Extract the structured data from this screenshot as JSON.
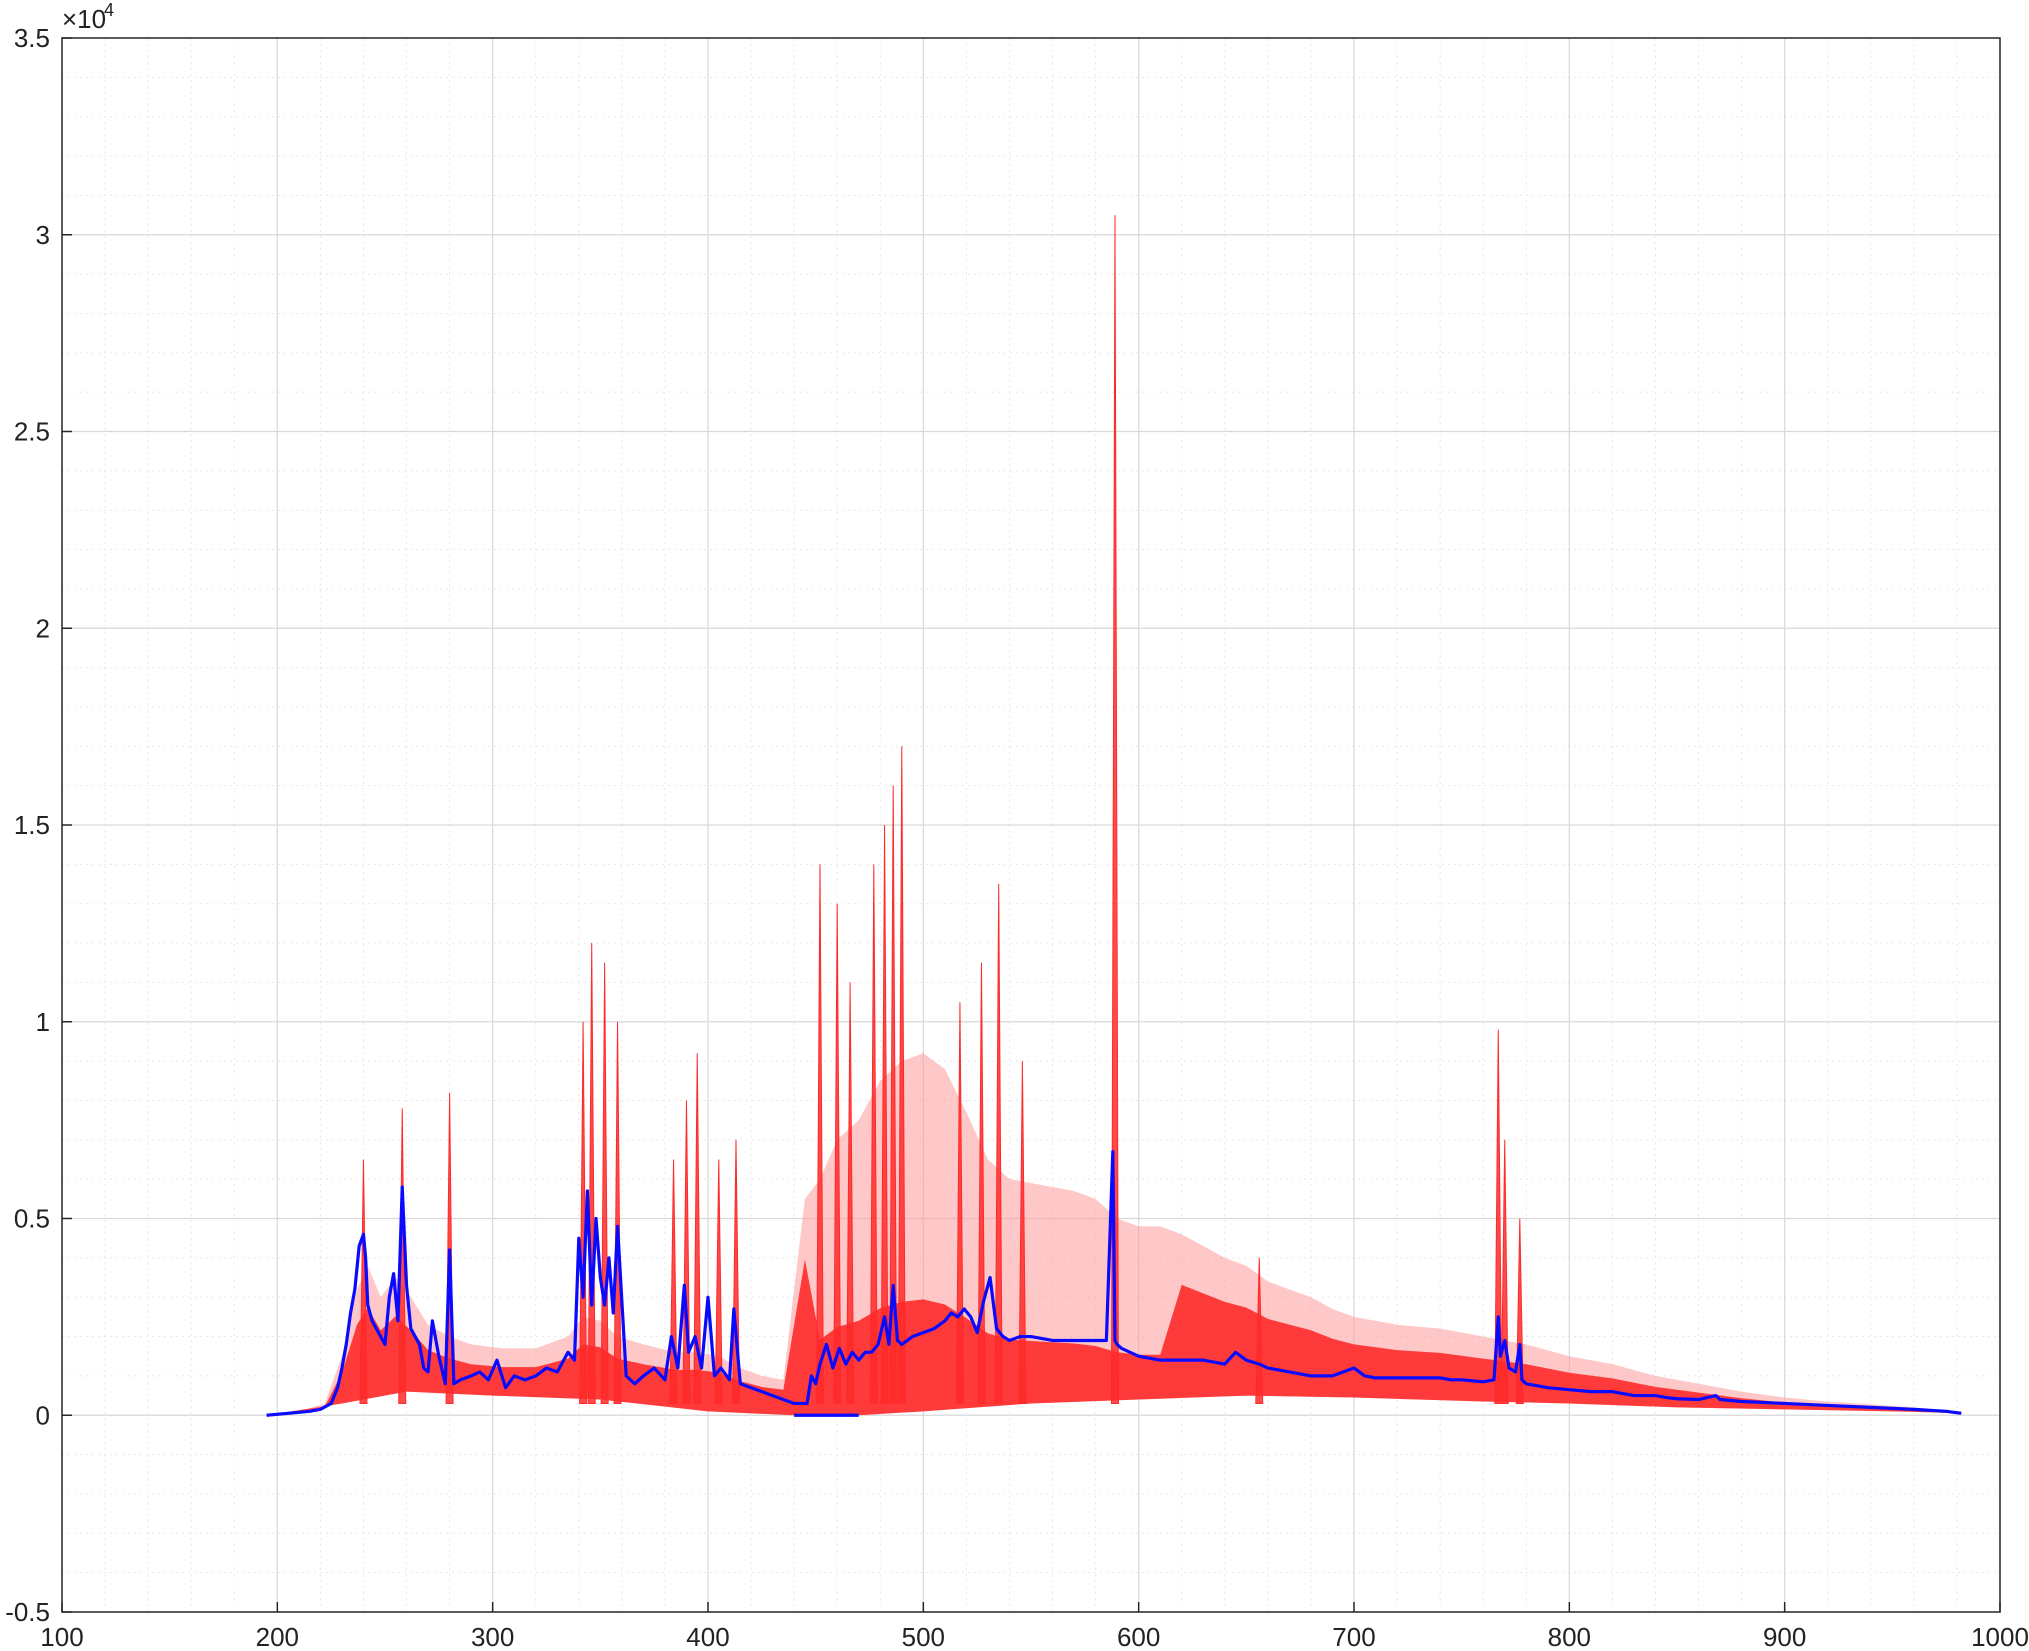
{
  "chart_data": {
    "type": "line",
    "title": "",
    "xlabel": "",
    "ylabel": "",
    "xlim": [
      100,
      1000
    ],
    "ylim": [
      -5000,
      35000
    ],
    "y_exponent_label": "×10",
    "y_exponent_power": "4",
    "x_ticks": [
      100,
      200,
      300,
      400,
      500,
      600,
      700,
      800,
      900,
      1000
    ],
    "x_tick_labels": [
      "100",
      "200",
      "300",
      "400",
      "500",
      "600",
      "700",
      "800",
      "900",
      "1000"
    ],
    "y_ticks": [
      -5000,
      0,
      5000,
      10000,
      15000,
      20000,
      25000,
      30000,
      35000
    ],
    "y_tick_labels": [
      "-0.5",
      "0",
      "0.5",
      "1",
      "1.5",
      "2",
      "2.5",
      "3",
      "3.5"
    ],
    "grid": "major and minor",
    "colors": {
      "band": "#ff2a2a",
      "band_light": "#ff9a9a",
      "mean": "#0a0aff",
      "grid": "#d9d9d9"
    },
    "series": [
      {
        "role": "spectra envelope (upper)",
        "color": "#ff2a2a",
        "x": [
          195,
          210,
          222,
          230,
          237,
          242,
          248,
          255,
          262,
          270,
          280,
          290,
          305,
          320,
          335,
          342,
          350,
          358,
          370,
          385,
          395,
          405,
          415,
          425,
          435,
          445,
          452,
          460,
          470,
          480,
          490,
          500,
          510,
          520,
          530,
          540,
          550,
          560,
          570,
          580,
          590,
          600,
          610,
          620,
          630,
          640,
          650,
          660,
          670,
          680,
          690,
          700,
          720,
          740,
          760,
          780,
          800,
          820,
          840,
          860,
          880,
          900,
          920,
          940,
          960,
          982
        ],
        "y": [
          0,
          100,
          300,
          1500,
          3200,
          3800,
          3000,
          3500,
          3000,
          2300,
          2000,
          1800,
          1700,
          1700,
          2000,
          2500,
          2400,
          2000,
          1800,
          1600,
          1600,
          1500,
          1200,
          1000,
          900,
          5500,
          6000,
          7000,
          7500,
          8500,
          9000,
          9200,
          8800,
          7700,
          6500,
          6000,
          5900,
          5800,
          5700,
          5500,
          5000,
          4800,
          4800,
          4600,
          4300,
          4000,
          3800,
          3400,
          3200,
          3000,
          2700,
          2500,
          2300,
          2200,
          2000,
          1800,
          1500,
          1300,
          1000,
          800,
          600,
          450,
          350,
          280,
          200,
          100
        ]
      },
      {
        "role": "spectra envelope (lower)",
        "color": "#ff2a2a",
        "x": [
          195,
          230,
          260,
          300,
          350,
          400,
          440,
          470,
          500,
          550,
          600,
          650,
          700,
          760,
          800,
          850,
          900,
          950,
          982
        ],
        "y": [
          0,
          300,
          600,
          500,
          400,
          100,
          0,
          0,
          100,
          300,
          400,
          500,
          450,
          350,
          300,
          200,
          150,
          100,
          50
        ]
      },
      {
        "role": "spectral line peaks",
        "color": "#ff2a2a",
        "x": [
          240,
          258,
          280,
          342,
          346,
          352,
          358,
          384,
          390,
          395,
          405,
          413,
          452,
          460,
          466,
          477,
          482,
          486,
          490,
          517,
          527,
          535,
          546,
          589,
          656,
          767,
          770,
          777
        ],
        "y": [
          6500,
          7800,
          8200,
          10000,
          12000,
          11500,
          10000,
          6500,
          8000,
          9200,
          6500,
          7000,
          14000,
          13000,
          11000,
          14000,
          15000,
          16000,
          17000,
          10500,
          11500,
          13500,
          9000,
          30500,
          4000,
          9800,
          7000,
          5000
        ]
      },
      {
        "role": "mean spectrum",
        "color": "#0a0aff",
        "x": [
          195,
          205,
          215,
          220,
          225,
          228,
          230,
          232,
          234,
          236,
          238,
          240,
          241,
          242,
          244,
          246,
          248,
          250,
          252,
          254,
          256,
          258,
          260,
          262,
          264,
          266,
          268,
          270,
          272,
          275,
          278,
          280,
          282,
          285,
          290,
          294,
          298,
          302,
          306,
          310,
          315,
          320,
          325,
          330,
          335,
          338,
          340,
          342,
          344,
          346,
          348,
          350,
          352,
          354,
          356,
          358,
          362,
          366,
          370,
          375,
          380,
          383,
          386,
          389,
          391,
          394,
          397,
          400,
          403,
          406,
          410,
          412,
          415,
          420,
          425,
          430,
          435,
          440,
          442,
          444,
          446,
          448,
          450,
          452,
          455,
          458,
          461,
          464,
          467,
          470,
          473,
          476,
          479,
          482,
          484,
          486,
          488,
          490,
          495,
          500,
          505,
          510,
          513,
          516,
          519,
          522,
          525,
          528,
          531,
          534,
          537,
          540,
          545,
          550,
          560,
          570,
          580,
          585,
          588,
          589,
          590,
          592,
          596,
          600,
          610,
          620,
          630,
          640,
          645,
          650,
          656,
          660,
          670,
          680,
          690,
          700,
          705,
          710,
          720,
          730,
          740,
          745,
          750,
          760,
          765,
          767,
          768,
          770,
          772,
          775,
          777,
          778,
          780,
          790,
          800,
          810,
          820,
          830,
          840,
          845,
          850,
          860,
          868,
          870,
          880,
          900,
          920,
          940,
          960,
          975,
          982
        ],
        "y": [
          0,
          50,
          100,
          150,
          300,
          700,
          1200,
          1800,
          2600,
          3200,
          4300,
          4600,
          4000,
          2800,
          2400,
          2200,
          2000,
          1800,
          3000,
          3600,
          2400,
          5800,
          3300,
          2200,
          2000,
          1800,
          1200,
          1100,
          2400,
          1500,
          800,
          4200,
          800,
          900,
          1000,
          1100,
          900,
          1400,
          700,
          1000,
          900,
          1000,
          1200,
          1100,
          1600,
          1400,
          4500,
          3000,
          5700,
          2800,
          5000,
          3500,
          2800,
          4000,
          2600,
          4800,
          1000,
          800,
          1000,
          1200,
          900,
          2000,
          1200,
          3300,
          1600,
          2000,
          1200,
          3000,
          1000,
          1200,
          900,
          2700,
          800,
          700,
          600,
          500,
          400,
          300,
          300,
          300,
          300,
          1000,
          800,
          1300,
          1800,
          1200,
          1700,
          1300,
          1600,
          1400,
          1600,
          1600,
          1800,
          2500,
          1800,
          3300,
          1900,
          1800,
          2000,
          2100,
          2200,
          2400,
          2600,
          2500,
          2700,
          2500,
          2100,
          2900,
          3500,
          2200,
          2000,
          1900,
          2000,
          2000,
          1900,
          1900,
          1900,
          1900,
          6700,
          1900,
          1800,
          1700,
          1600,
          1500,
          1400,
          1400,
          1400,
          1300,
          1600,
          1400,
          1300,
          1200,
          1100,
          1000,
          1000,
          1200,
          1000,
          950,
          950,
          950,
          950,
          900,
          900,
          850,
          900,
          2500,
          1500,
          1900,
          1200,
          1100,
          1800,
          900,
          800,
          700,
          650,
          600,
          600,
          500,
          500,
          450,
          420,
          400,
          500,
          400,
          350,
          300,
          250,
          200,
          150,
          100,
          50
        ]
      },
      {
        "role": "mean spectrum (baseline segment)",
        "color": "#0a0aff",
        "x": [
          440,
          455,
          470
        ],
        "y": [
          0,
          0,
          0
        ]
      }
    ]
  }
}
